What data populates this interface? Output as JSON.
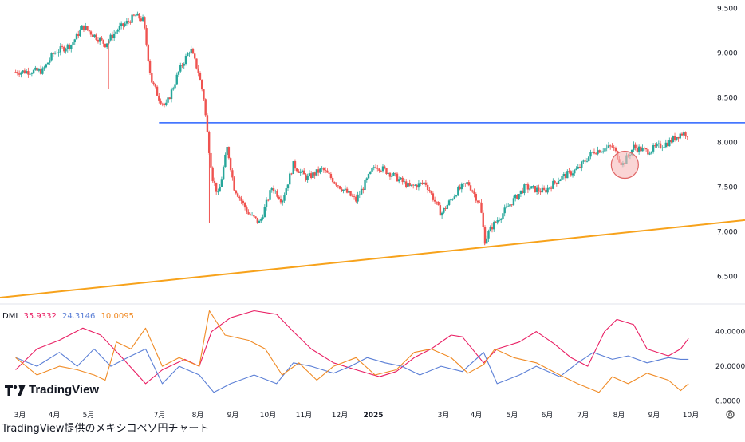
{
  "caption": "TradingView提供のメキシコペソ円チャート",
  "logo_text": "TradingView",
  "colors": {
    "up": "#26a69a",
    "down": "#ef5350",
    "resistance": "#2962ff",
    "support": "#f7a21b",
    "di_plus": "#e91e63",
    "di_minus": "#5b7fd6",
    "adx": "#f08a24",
    "marker_fill": "#f7b9b9",
    "marker_stroke": "#e06666"
  },
  "chart_data": [
    {
      "type": "candlestick",
      "title": "",
      "price_axis": {
        "ticks": [
          "9.500",
          "9.000",
          "8.500",
          "8.000",
          "7.500",
          "7.000",
          "6.500"
        ],
        "ylim": [
          6.2,
          9.55
        ]
      },
      "x_axis": {
        "ticks": [
          "3月",
          "4月",
          "5月",
          "7月",
          "8月",
          "9月",
          "10月",
          "11月",
          "12月",
          "2025",
          "3月",
          "4月",
          "5月",
          "6月",
          "7月",
          "8月",
          "9月",
          "10月"
        ]
      },
      "price_path": [
        [
          "2024-02-15",
          8.79
        ],
        [
          "2024-03-10",
          8.8
        ],
        [
          "2024-03-20",
          9.0
        ],
        [
          "2024-04-05",
          9.1
        ],
        [
          "2024-04-15",
          9.3
        ],
        [
          "2024-04-25",
          9.2
        ],
        [
          "2024-05-05",
          9.1
        ],
        [
          "2024-05-15",
          9.25
        ],
        [
          "2024-05-25",
          9.35
        ],
        [
          "2024-06-01",
          9.42
        ],
        [
          "2024-06-08",
          9.37
        ],
        [
          "2024-06-15",
          8.7
        ],
        [
          "2024-06-22",
          8.5
        ],
        [
          "2024-06-28",
          8.4
        ],
        [
          "2024-07-10",
          8.8
        ],
        [
          "2024-07-20",
          9.05
        ],
        [
          "2024-07-27",
          8.8
        ],
        [
          "2024-08-01",
          8.5
        ],
        [
          "2024-08-05",
          8.0
        ],
        [
          "2024-08-09",
          7.6
        ],
        [
          "2024-08-14",
          7.4
        ],
        [
          "2024-08-22",
          7.95
        ],
        [
          "2024-08-28",
          7.5
        ],
        [
          "2024-09-10",
          7.2
        ],
        [
          "2024-09-20",
          7.1
        ],
        [
          "2024-10-01",
          7.5
        ],
        [
          "2024-10-10",
          7.35
        ],
        [
          "2024-10-20",
          7.75
        ],
        [
          "2024-11-01",
          7.6
        ],
        [
          "2024-11-15",
          7.7
        ],
        [
          "2024-12-01",
          7.5
        ],
        [
          "2024-12-15",
          7.35
        ],
        [
          "2025-01-01",
          7.75
        ],
        [
          "2025-01-15",
          7.65
        ],
        [
          "2025-02-01",
          7.5
        ],
        [
          "2025-02-15",
          7.55
        ],
        [
          "2025-03-01",
          7.2
        ],
        [
          "2025-03-15",
          7.45
        ],
        [
          "2025-03-25",
          7.55
        ],
        [
          "2025-04-05",
          7.3
        ],
        [
          "2025-04-09",
          6.9
        ],
        [
          "2025-04-15",
          7.05
        ],
        [
          "2025-05-01",
          7.3
        ],
        [
          "2025-05-15",
          7.5
        ],
        [
          "2025-06-01",
          7.45
        ],
        [
          "2025-06-15",
          7.6
        ],
        [
          "2025-07-01",
          7.7
        ],
        [
          "2025-07-15",
          7.9
        ],
        [
          "2025-08-01",
          7.95
        ],
        [
          "2025-08-10",
          7.75
        ],
        [
          "2025-08-20",
          7.95
        ],
        [
          "2025-09-01",
          7.9
        ],
        [
          "2025-09-20",
          8.0
        ],
        [
          "2025-10-01",
          8.1
        ],
        [
          "2025-10-08",
          8.1
        ]
      ],
      "wicks": [
        {
          "x": "2024-05-08",
          "low": 8.6
        },
        {
          "x": "2024-08-06",
          "low": 7.1
        },
        {
          "x": "2025-04-09",
          "low": 6.85
        }
      ],
      "resistance_line": {
        "value": 8.22,
        "from": "2024-06-22",
        "to": "2025-10-31"
      },
      "support_trendline": {
        "from": [
          "2024-01-15",
          6.24
        ],
        "to": [
          "2025-11-01",
          7.13
        ]
      },
      "highlight_marker": {
        "x": "2025-08-10",
        "y": 7.75
      }
    },
    {
      "type": "line",
      "title": "",
      "legend": {
        "label": "DMI",
        "values": [
          "35.9332",
          "24.3146",
          "10.0095"
        ]
      },
      "y_axis": {
        "ticks": [
          "40.0000",
          "20.0000",
          "0.0000"
        ],
        "ylim": [
          -2,
          55
        ]
      },
      "series": [
        {
          "values": [
            [
              "2024-02-15",
              18
            ],
            [
              "2024-03-05",
              30
            ],
            [
              "2024-03-25",
              35
            ],
            [
              "2024-04-15",
              42
            ],
            [
              "2024-05-01",
              38
            ],
            [
              "2024-05-20",
              25
            ],
            [
              "2024-06-10",
              10
            ],
            [
              "2024-06-25",
              18
            ],
            [
              "2024-07-15",
              24
            ],
            [
              "2024-07-28",
              20
            ],
            [
              "2024-08-08",
              40
            ],
            [
              "2024-08-25",
              48
            ],
            [
              "2024-09-15",
              52
            ],
            [
              "2024-10-05",
              50
            ],
            [
              "2024-10-20",
              40
            ],
            [
              "2024-11-05",
              30
            ],
            [
              "2024-11-25",
              22
            ],
            [
              "2024-12-15",
              18
            ],
            [
              "2025-01-05",
              14
            ],
            [
              "2025-01-20",
              17
            ],
            [
              "2025-02-05",
              25
            ],
            [
              "2025-02-20",
              30
            ],
            [
              "2025-03-10",
              38
            ],
            [
              "2025-03-20",
              37
            ],
            [
              "2025-04-08",
              22
            ],
            [
              "2025-04-20",
              30
            ],
            [
              "2025-05-10",
              34
            ],
            [
              "2025-05-25",
              40
            ],
            [
              "2025-06-10",
              33
            ],
            [
              "2025-06-25",
              25
            ],
            [
              "2025-07-10",
              20
            ],
            [
              "2025-07-25",
              40
            ],
            [
              "2025-08-05",
              47
            ],
            [
              "2025-08-20",
              44
            ],
            [
              "2025-09-01",
              30
            ],
            [
              "2025-09-20",
              26
            ],
            [
              "2025-10-01",
              30
            ],
            [
              "2025-10-08",
              36
            ]
          ]
        },
        {
          "values": [
            [
              "2024-02-15",
              25
            ],
            [
              "2024-03-05",
              20
            ],
            [
              "2024-03-25",
              28
            ],
            [
              "2024-04-10",
              20
            ],
            [
              "2024-04-25",
              30
            ],
            [
              "2024-05-10",
              20
            ],
            [
              "2024-05-25",
              25
            ],
            [
              "2024-06-10",
              30
            ],
            [
              "2024-06-25",
              10
            ],
            [
              "2024-07-10",
              20
            ],
            [
              "2024-07-28",
              15
            ],
            [
              "2024-08-10",
              5
            ],
            [
              "2024-08-25",
              10
            ],
            [
              "2024-09-15",
              15
            ],
            [
              "2024-10-05",
              10
            ],
            [
              "2024-10-20",
              22
            ],
            [
              "2024-11-05",
              20
            ],
            [
              "2024-11-25",
              16
            ],
            [
              "2024-12-10",
              20
            ],
            [
              "2024-12-25",
              25
            ],
            [
              "2025-01-10",
              22
            ],
            [
              "2025-01-25",
              20
            ],
            [
              "2025-02-10",
              15
            ],
            [
              "2025-03-01",
              20
            ],
            [
              "2025-03-20",
              17
            ],
            [
              "2025-04-08",
              28
            ],
            [
              "2025-04-20",
              10
            ],
            [
              "2025-05-10",
              15
            ],
            [
              "2025-05-25",
              20
            ],
            [
              "2025-06-15",
              14
            ],
            [
              "2025-07-01",
              22
            ],
            [
              "2025-07-15",
              28
            ],
            [
              "2025-08-01",
              24
            ],
            [
              "2025-08-15",
              26
            ],
            [
              "2025-09-01",
              22
            ],
            [
              "2025-09-20",
              25
            ],
            [
              "2025-10-01",
              24
            ],
            [
              "2025-10-08",
              24
            ]
          ]
        },
        {
          "values": [
            [
              "2024-02-15",
              25
            ],
            [
              "2024-03-05",
              15
            ],
            [
              "2024-03-25",
              20
            ],
            [
              "2024-04-10",
              18
            ],
            [
              "2024-04-25",
              15
            ],
            [
              "2024-05-05",
              12
            ],
            [
              "2024-05-15",
              34
            ],
            [
              "2024-05-28",
              30
            ],
            [
              "2024-06-10",
              42
            ],
            [
              "2024-06-25",
              20
            ],
            [
              "2024-07-10",
              25
            ],
            [
              "2024-07-28",
              20
            ],
            [
              "2024-08-06",
              52
            ],
            [
              "2024-08-20",
              38
            ],
            [
              "2024-09-10",
              35
            ],
            [
              "2024-09-25",
              30
            ],
            [
              "2024-10-10",
              15
            ],
            [
              "2024-10-25",
              22
            ],
            [
              "2024-11-10",
              12
            ],
            [
              "2024-11-25",
              20
            ],
            [
              "2024-12-15",
              25
            ],
            [
              "2025-01-01",
              15
            ],
            [
              "2025-01-20",
              18
            ],
            [
              "2025-02-05",
              28
            ],
            [
              "2025-02-20",
              30
            ],
            [
              "2025-03-10",
              25
            ],
            [
              "2025-03-25",
              16
            ],
            [
              "2025-04-08",
              21
            ],
            [
              "2025-04-18",
              30
            ],
            [
              "2025-05-05",
              25
            ],
            [
              "2025-05-25",
              22
            ],
            [
              "2025-06-15",
              15
            ],
            [
              "2025-07-01",
              10
            ],
            [
              "2025-07-20",
              5
            ],
            [
              "2025-08-01",
              14
            ],
            [
              "2025-08-15",
              10
            ],
            [
              "2025-09-01",
              16
            ],
            [
              "2025-09-20",
              12
            ],
            [
              "2025-10-01",
              6
            ],
            [
              "2025-10-08",
              10
            ]
          ]
        }
      ]
    }
  ]
}
